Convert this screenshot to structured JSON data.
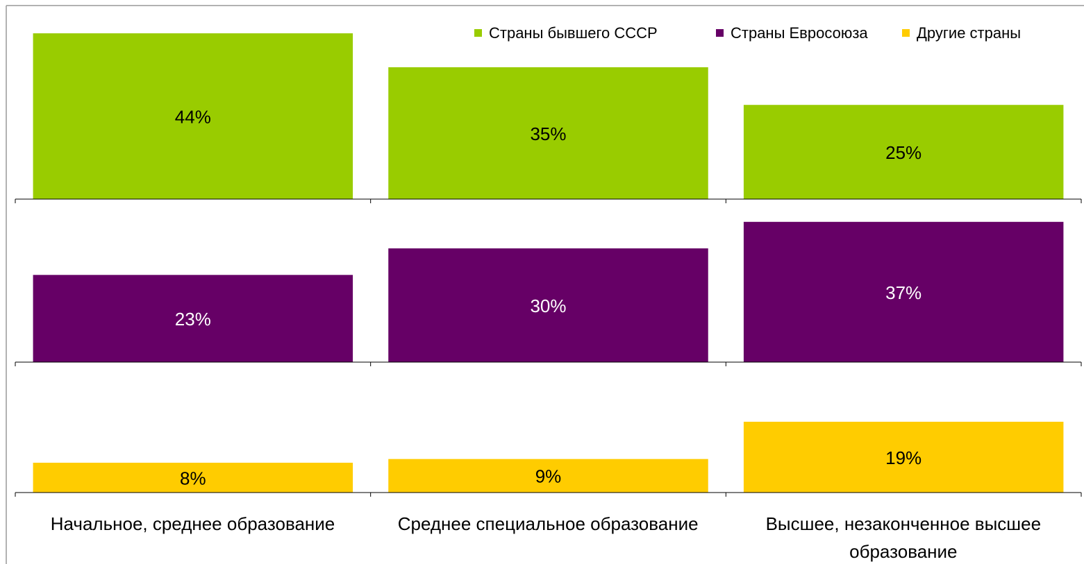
{
  "chart_data": {
    "type": "bar",
    "categories": [
      "Начальное, среднее образование",
      "Среднее специальное образование",
      "Высшее, незаконченное высшее образование"
    ],
    "series": [
      {
        "name": "Страны бывшего СССР",
        "color": "#99cc00",
        "label_color": "#000000",
        "values": [
          44,
          35,
          25
        ],
        "value_labels": [
          "44%",
          "35%",
          "25%"
        ],
        "ylim": [
          0,
          51
        ]
      },
      {
        "name": "Страны Евросоюза",
        "color": "#660066",
        "label_color": "#ffffff",
        "values": [
          23,
          30,
          37
        ],
        "value_labels": [
          "23%",
          "30%",
          "37%"
        ],
        "ylim": [
          0,
          43
        ]
      },
      {
        "name": "Другие страны",
        "color": "#ffcc00",
        "label_color": "#000000",
        "values": [
          8,
          9,
          19
        ],
        "value_labels": [
          "8%",
          "9%",
          "19%"
        ],
        "ylim": [
          0,
          35
        ]
      }
    ],
    "legend": "top-right"
  }
}
